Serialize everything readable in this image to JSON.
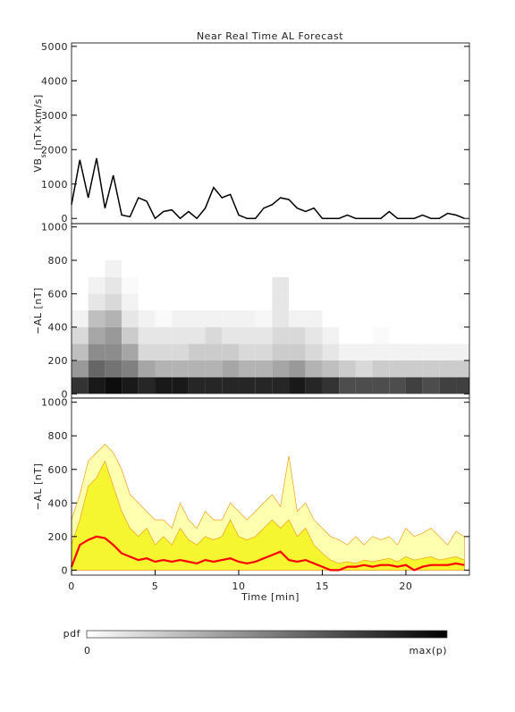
{
  "chart_data": [
    {
      "type": "line",
      "title": "Near Real Time AL Forecast",
      "ylabel": {
        "main": "VB",
        "sub": "s",
        "unit": " [nT×km/s]"
      },
      "xlim": [
        0,
        23.8
      ],
      "ylim": [
        -150,
        5100
      ],
      "yticks": [
        0,
        1000,
        2000,
        3000,
        4000,
        5000
      ],
      "x": [
        0,
        0.5,
        1,
        1.5,
        2,
        2.5,
        3,
        3.5,
        4,
        4.5,
        5,
        5.5,
        6,
        6.5,
        7,
        7.5,
        8,
        8.5,
        9,
        9.5,
        10,
        10.5,
        11,
        11.5,
        12,
        12.5,
        13,
        13.5,
        14,
        14.5,
        15,
        15.5,
        16,
        16.5,
        17,
        17.5,
        18,
        18.5,
        19,
        19.5,
        20,
        20.5,
        21,
        21.5,
        22,
        22.5,
        23,
        23.5
      ],
      "series": [
        {
          "color": "#000000",
          "values": [
            400,
            1700,
            600,
            1750,
            300,
            1250,
            100,
            50,
            600,
            500,
            0,
            200,
            250,
            0,
            200,
            0,
            300,
            900,
            600,
            700,
            100,
            0,
            0,
            300,
            400,
            600,
            550,
            300,
            200,
            300,
            0,
            0,
            0,
            100,
            0,
            0,
            0,
            0,
            200,
            0,
            0,
            0,
            100,
            0,
            0,
            150,
            100,
            0
          ]
        }
      ]
    },
    {
      "type": "heatmap",
      "ylabel": "−AL [nT]",
      "xlim": [
        0,
        23.8
      ],
      "ylim": [
        -25,
        1020
      ],
      "yticks": [
        0,
        200,
        400,
        600,
        800,
        1000
      ],
      "xbins": [
        0,
        1,
        2,
        3,
        4,
        5,
        6,
        7,
        8,
        9,
        10,
        11,
        12,
        13,
        14,
        15,
        16,
        17,
        18,
        19,
        20,
        21,
        22,
        23,
        24
      ],
      "ybins": [
        0,
        100,
        200,
        300,
        400,
        500,
        600,
        700,
        800
      ],
      "z": [
        [
          0.8,
          0.4,
          0.25,
          0.15,
          0.05,
          0,
          0,
          0
        ],
        [
          0.9,
          0.6,
          0.45,
          0.35,
          0.25,
          0.1,
          0.05,
          0
        ],
        [
          0.95,
          0.55,
          0.45,
          0.4,
          0.3,
          0.15,
          0.1,
          0.05
        ],
        [
          0.9,
          0.5,
          0.35,
          0.2,
          0.1,
          0.05,
          0.02,
          0
        ],
        [
          0.85,
          0.35,
          0.15,
          0.1,
          0.05,
          0,
          0,
          0
        ],
        [
          0.9,
          0.3,
          0.15,
          0.1,
          0.02,
          0,
          0,
          0
        ],
        [
          0.9,
          0.3,
          0.15,
          0.1,
          0.05,
          0,
          0,
          0
        ],
        [
          0.85,
          0.3,
          0.2,
          0.1,
          0.05,
          0,
          0,
          0
        ],
        [
          0.85,
          0.3,
          0.2,
          0.15,
          0.05,
          0,
          0,
          0
        ],
        [
          0.85,
          0.35,
          0.2,
          0.1,
          0.05,
          0,
          0,
          0
        ],
        [
          0.85,
          0.3,
          0.15,
          0.1,
          0.05,
          0,
          0,
          0
        ],
        [
          0.85,
          0.3,
          0.15,
          0.1,
          0.03,
          0,
          0,
          0
        ],
        [
          0.85,
          0.35,
          0.2,
          0.15,
          0.1,
          0.1,
          0.1,
          0
        ],
        [
          0.9,
          0.4,
          0.2,
          0.15,
          0.05,
          0,
          0,
          0
        ],
        [
          0.85,
          0.3,
          0.15,
          0.1,
          0.05,
          0,
          0,
          0
        ],
        [
          0.8,
          0.25,
          0.1,
          0.05,
          0,
          0,
          0,
          0
        ],
        [
          0.7,
          0.2,
          0.05,
          0,
          0,
          0,
          0,
          0
        ],
        [
          0.7,
          0.15,
          0.05,
          0,
          0,
          0,
          0,
          0
        ],
        [
          0.7,
          0.2,
          0.05,
          0.02,
          0,
          0,
          0,
          0
        ],
        [
          0.7,
          0.2,
          0.05,
          0,
          0,
          0,
          0,
          0
        ],
        [
          0.75,
          0.2,
          0.05,
          0,
          0,
          0,
          0,
          0
        ],
        [
          0.7,
          0.2,
          0.05,
          0,
          0,
          0,
          0,
          0
        ],
        [
          0.75,
          0.2,
          0.05,
          0,
          0,
          0,
          0,
          0
        ],
        [
          0.75,
          0.2,
          0.05,
          0,
          0,
          0,
          0,
          0
        ]
      ],
      "colorbar": {
        "label": "pdf",
        "min_label": "0",
        "max_label": "max(p)"
      }
    },
    {
      "type": "band",
      "ylabel": "−AL [nT]",
      "xlabel": "Time [min]",
      "xlim": [
        0,
        23.8
      ],
      "ylim": [
        -30,
        1025
      ],
      "yticks": [
        0,
        200,
        400,
        600,
        800,
        1000
      ],
      "xticks": [
        0,
        5,
        10,
        15,
        20
      ],
      "x": [
        0,
        0.5,
        1,
        1.5,
        2,
        2.5,
        3,
        3.5,
        4,
        4.5,
        5,
        5.5,
        6,
        6.5,
        7,
        7.5,
        8,
        8.5,
        9,
        9.5,
        10,
        10.5,
        11,
        11.5,
        12,
        12.5,
        13,
        13.5,
        14,
        14.5,
        15,
        15.5,
        16,
        16.5,
        17,
        17.5,
        18,
        18.5,
        19,
        19.5,
        20,
        20.5,
        21,
        21.5,
        22,
        22.5,
        23,
        23.5
      ],
      "series": [
        {
          "color": "#ffffb0",
          "values": [
            300,
            450,
            650,
            700,
            750,
            700,
            600,
            450,
            400,
            350,
            300,
            300,
            250,
            400,
            300,
            250,
            350,
            300,
            300,
            400,
            350,
            300,
            350,
            400,
            450,
            380,
            680,
            350,
            400,
            300,
            250,
            200,
            180,
            150,
            200,
            150,
            200,
            180,
            200,
            150,
            250,
            200,
            220,
            250,
            200,
            150,
            230,
            200
          ]
        },
        {
          "color": "#f5f530",
          "values": [
            150,
            300,
            500,
            550,
            650,
            500,
            350,
            250,
            200,
            250,
            150,
            200,
            150,
            250,
            180,
            150,
            200,
            180,
            200,
            300,
            200,
            180,
            200,
            250,
            300,
            250,
            300,
            200,
            250,
            150,
            100,
            60,
            40,
            50,
            40,
            60,
            50,
            60,
            70,
            50,
            80,
            60,
            70,
            80,
            60,
            70,
            80,
            60
          ]
        },
        {
          "color": "#ff0000",
          "values": [
            20,
            150,
            180,
            200,
            190,
            150,
            100,
            80,
            60,
            70,
            50,
            60,
            50,
            60,
            50,
            40,
            60,
            50,
            60,
            70,
            50,
            40,
            50,
            70,
            90,
            110,
            60,
            50,
            60,
            40,
            20,
            0,
            0,
            20,
            20,
            30,
            20,
            30,
            30,
            20,
            30,
            0,
            20,
            30,
            30,
            30,
            40,
            30
          ]
        }
      ]
    }
  ]
}
